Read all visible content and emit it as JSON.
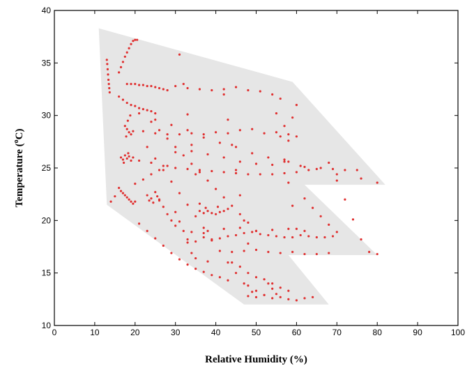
{
  "chart_data": {
    "type": "scatter",
    "title": "",
    "xlabel": "Relative Humidity (%)",
    "ylabel_main": "Temperature (",
    "ylabel_sup": "o",
    "ylabel_unit": "C)",
    "xlim": [
      0,
      100
    ],
    "ylim": [
      10,
      40
    ],
    "xticks": [
      0,
      10,
      20,
      30,
      40,
      50,
      60,
      70,
      80,
      90,
      100
    ],
    "yticks": [
      10,
      15,
      20,
      25,
      30,
      35,
      40
    ],
    "grid": false,
    "legend": "none",
    "colors": {
      "points": "#e03030",
      "region": "#e6e6e6",
      "axes": "#000000"
    },
    "region": [
      [
        11,
        38.3
      ],
      [
        59,
        33.2
      ],
      [
        82,
        23.4
      ],
      [
        70,
        23.4
      ],
      [
        62,
        23.4
      ],
      [
        80,
        16.7
      ],
      [
        58,
        16.7
      ],
      [
        68,
        12.0
      ],
      [
        47,
        12.0
      ],
      [
        13,
        21.5
      ],
      [
        11,
        38.3
      ]
    ],
    "series": [
      {
        "points": [
          [
            16,
            34.1
          ],
          [
            16.5,
            34.6
          ],
          [
            17,
            35.1
          ],
          [
            17.5,
            35.6
          ],
          [
            18,
            36.0
          ],
          [
            18.5,
            36.4
          ],
          [
            19,
            36.8
          ],
          [
            19.5,
            37.1
          ],
          [
            20,
            37.2
          ],
          [
            20.5,
            37.2
          ],
          [
            13.0,
            35.3
          ],
          [
            13.1,
            34.9
          ],
          [
            13.2,
            34.4
          ],
          [
            13.3,
            33.9
          ],
          [
            13.4,
            33.4
          ],
          [
            13.5,
            33.0
          ],
          [
            13.6,
            32.6
          ],
          [
            13.7,
            32.2
          ],
          [
            18,
            33.0
          ],
          [
            19,
            33.0
          ],
          [
            20,
            33.0
          ],
          [
            21,
            32.9
          ],
          [
            22,
            32.9
          ],
          [
            23,
            32.8
          ],
          [
            24,
            32.8
          ],
          [
            25,
            32.7
          ],
          [
            26,
            32.6
          ],
          [
            27,
            32.5
          ],
          [
            28,
            32.4
          ],
          [
            30,
            32.8
          ],
          [
            33,
            32.6
          ],
          [
            36,
            32.5
          ],
          [
            39,
            32.4
          ],
          [
            42,
            32.5
          ],
          [
            45,
            32.7
          ],
          [
            48,
            32.4
          ],
          [
            51,
            32.3
          ],
          [
            54,
            32.0
          ],
          [
            56,
            31.6
          ],
          [
            16,
            31.8
          ],
          [
            17,
            31.5
          ],
          [
            18,
            31.2
          ],
          [
            19,
            31.0
          ],
          [
            20,
            30.9
          ],
          [
            21,
            30.7
          ],
          [
            22,
            30.6
          ],
          [
            23,
            30.5
          ],
          [
            24,
            30.4
          ],
          [
            25,
            30.2
          ],
          [
            17.5,
            29.0
          ],
          [
            18,
            28.7
          ],
          [
            18.5,
            28.4
          ],
          [
            19,
            28.2
          ],
          [
            19.5,
            28.5
          ],
          [
            18.2,
            29.5
          ],
          [
            18.8,
            30.0
          ],
          [
            17.8,
            28.0
          ],
          [
            22,
            28.5
          ],
          [
            25,
            28.3
          ],
          [
            28,
            28.2
          ],
          [
            31,
            28.2
          ],
          [
            34,
            28.3
          ],
          [
            37,
            28.2
          ],
          [
            40,
            28.4
          ],
          [
            43,
            28.3
          ],
          [
            46,
            28.6
          ],
          [
            49,
            28.7
          ],
          [
            52,
            28.3
          ],
          [
            55,
            28.4
          ],
          [
            58,
            28.2
          ],
          [
            60,
            28.0
          ],
          [
            16.5,
            26.0
          ],
          [
            17,
            25.8
          ],
          [
            17.5,
            26.2
          ],
          [
            18,
            25.9
          ],
          [
            18.5,
            26.1
          ],
          [
            19,
            25.7
          ],
          [
            19.5,
            26.0
          ],
          [
            17.2,
            25.5
          ],
          [
            18.3,
            26.4
          ],
          [
            21,
            25.7
          ],
          [
            24,
            25.5
          ],
          [
            27,
            25.2
          ],
          [
            30,
            25.0
          ],
          [
            33,
            24.9
          ],
          [
            36,
            24.8
          ],
          [
            39,
            24.7
          ],
          [
            42,
            24.6
          ],
          [
            45,
            24.5
          ],
          [
            48,
            24.4
          ],
          [
            51,
            24.4
          ],
          [
            54,
            24.4
          ],
          [
            57,
            24.5
          ],
          [
            60,
            24.6
          ],
          [
            63,
            24.8
          ],
          [
            66,
            25.0
          ],
          [
            69,
            24.9
          ],
          [
            72,
            24.8
          ],
          [
            75,
            24.8
          ],
          [
            16.5,
            22.8
          ],
          [
            17,
            22.6
          ],
          [
            17.5,
            22.4
          ],
          [
            18,
            22.2
          ],
          [
            18.5,
            22.0
          ],
          [
            19,
            21.8
          ],
          [
            19.5,
            21.6
          ],
          [
            20,
            21.8
          ],
          [
            23,
            22.4
          ],
          [
            24,
            22.1
          ],
          [
            25,
            22.7
          ],
          [
            26,
            22.0
          ],
          [
            24.5,
            21.7
          ],
          [
            25.5,
            22.3
          ],
          [
            23.5,
            21.9
          ],
          [
            36,
            20.9
          ],
          [
            37,
            20.7
          ],
          [
            38,
            20.9
          ],
          [
            39,
            20.7
          ],
          [
            40,
            20.6
          ],
          [
            41,
            20.8
          ],
          [
            42,
            20.9
          ],
          [
            43,
            21.1
          ],
          [
            37.5,
            21.2
          ],
          [
            40.5,
            21.3
          ],
          [
            33,
            18.2
          ],
          [
            35,
            18.0
          ],
          [
            37,
            18.4
          ],
          [
            39,
            18.1
          ],
          [
            41,
            18.3
          ],
          [
            43,
            18.5
          ],
          [
            45,
            18.6
          ],
          [
            47,
            18.8
          ],
          [
            49,
            18.9
          ],
          [
            51,
            18.7
          ],
          [
            53,
            18.6
          ],
          [
            55,
            18.5
          ],
          [
            57,
            18.4
          ],
          [
            59,
            18.4
          ],
          [
            61,
            18.6
          ],
          [
            63,
            18.5
          ],
          [
            65,
            18.4
          ],
          [
            67,
            18.4
          ],
          [
            69,
            18.5
          ],
          [
            34,
            18.9
          ],
          [
            38,
            19.0
          ],
          [
            42,
            19.2
          ],
          [
            46,
            19.3
          ],
          [
            50,
            19.0
          ],
          [
            54,
            19.1
          ],
          [
            58,
            19.2
          ],
          [
            62,
            19.0
          ],
          [
            44,
            17.0
          ],
          [
            47,
            17.1
          ],
          [
            50,
            17.2
          ],
          [
            53,
            17.0
          ],
          [
            56,
            16.9
          ],
          [
            59,
            17.0
          ],
          [
            62,
            16.8
          ],
          [
            65,
            16.8
          ],
          [
            68,
            16.9
          ],
          [
            21,
            19.7
          ],
          [
            23,
            19.0
          ],
          [
            25,
            18.3
          ],
          [
            27,
            17.6
          ],
          [
            29,
            16.9
          ],
          [
            31,
            16.3
          ],
          [
            33,
            15.8
          ],
          [
            35,
            15.4
          ],
          [
            37,
            15.1
          ],
          [
            39,
            14.8
          ],
          [
            41,
            14.6
          ],
          [
            43,
            14.3
          ],
          [
            48,
            12.8
          ],
          [
            50,
            12.7
          ],
          [
            52,
            12.9
          ],
          [
            54,
            12.6
          ],
          [
            56,
            12.7
          ],
          [
            58,
            12.5
          ],
          [
            60,
            12.4
          ],
          [
            62,
            12.6
          ],
          [
            64,
            12.7
          ],
          [
            48,
            13.8
          ],
          [
            50,
            13.3
          ],
          [
            52,
            12.9
          ],
          [
            54,
            13.5
          ],
          [
            55,
            13.0
          ],
          [
            53,
            14.0
          ],
          [
            24,
            29.4
          ],
          [
            26,
            28.6
          ],
          [
            28,
            27.8
          ],
          [
            30,
            27.0
          ],
          [
            32,
            26.2
          ],
          [
            34,
            25.4
          ],
          [
            36,
            24.6
          ],
          [
            38,
            23.8
          ],
          [
            40,
            23.0
          ],
          [
            42,
            22.2
          ],
          [
            44,
            21.4
          ],
          [
            46,
            20.6
          ],
          [
            48,
            19.8
          ],
          [
            50,
            19.0
          ],
          [
            23,
            27.0
          ],
          [
            25,
            25.9
          ],
          [
            27,
            24.8
          ],
          [
            29,
            23.7
          ],
          [
            31,
            22.6
          ],
          [
            33,
            21.5
          ],
          [
            35,
            20.4
          ],
          [
            37,
            19.3
          ],
          [
            39,
            18.2
          ],
          [
            41,
            17.1
          ],
          [
            43,
            16.0
          ],
          [
            45,
            15.0
          ],
          [
            47,
            14.0
          ],
          [
            49,
            13.2
          ],
          [
            31,
            35.8
          ],
          [
            32,
            33.0
          ],
          [
            33,
            30.1
          ],
          [
            34,
            27.2
          ],
          [
            35,
            24.4
          ],
          [
            36,
            21.6
          ],
          [
            37,
            18.8
          ],
          [
            38,
            16.1
          ],
          [
            42,
            32.0
          ],
          [
            43,
            29.6
          ],
          [
            44,
            27.2
          ],
          [
            45,
            24.8
          ],
          [
            46,
            22.4
          ],
          [
            47,
            20.0
          ],
          [
            48,
            17.8
          ],
          [
            55,
            30.2
          ],
          [
            56,
            28.0
          ],
          [
            57,
            25.8
          ],
          [
            58,
            23.6
          ],
          [
            59,
            21.4
          ],
          [
            60,
            19.2
          ],
          [
            68,
            25.5
          ],
          [
            70,
            23.8
          ],
          [
            72,
            22.0
          ],
          [
            74,
            20.1
          ],
          [
            76,
            18.2
          ],
          [
            78,
            17.0
          ],
          [
            80,
            16.8
          ],
          [
            21,
            30.2
          ],
          [
            25,
            29.6
          ],
          [
            29,
            29.1
          ],
          [
            33,
            28.6
          ],
          [
            37,
            27.9
          ],
          [
            41,
            27.4
          ],
          [
            45,
            27.0
          ],
          [
            49,
            26.4
          ],
          [
            53,
            26.0
          ],
          [
            57,
            25.6
          ],
          [
            61,
            25.2
          ],
          [
            65,
            24.9
          ],
          [
            70,
            24.4
          ],
          [
            76,
            24.0
          ],
          [
            80,
            23.6
          ],
          [
            30,
            26.5
          ],
          [
            34,
            26.6
          ],
          [
            38,
            26.3
          ],
          [
            42,
            26.0
          ],
          [
            46,
            25.6
          ],
          [
            50,
            25.4
          ],
          [
            54,
            25.3
          ],
          [
            58,
            25.6
          ],
          [
            62,
            25.1
          ],
          [
            20,
            23.5
          ],
          [
            22,
            23.9
          ],
          [
            24,
            24.4
          ],
          [
            26,
            24.8
          ],
          [
            28,
            25.2
          ],
          [
            14,
            21.8
          ],
          [
            15,
            22.3
          ],
          [
            16,
            23.1
          ],
          [
            30,
            20.8
          ],
          [
            31,
            19.9
          ],
          [
            32,
            19.0
          ],
          [
            33,
            17.9
          ],
          [
            34,
            16.9
          ],
          [
            35,
            16.4
          ],
          [
            57,
            29.0
          ],
          [
            59,
            29.8
          ],
          [
            60,
            31.0
          ],
          [
            58,
            27.6
          ],
          [
            44,
            16.0
          ],
          [
            46,
            15.6
          ],
          [
            48,
            15.0
          ],
          [
            50,
            14.6
          ],
          [
            52,
            14.4
          ],
          [
            54,
            14.0
          ],
          [
            56,
            13.6
          ],
          [
            58,
            13.3
          ],
          [
            62,
            22.1
          ],
          [
            64,
            21.2
          ],
          [
            66,
            20.4
          ],
          [
            68,
            19.6
          ],
          [
            70,
            18.9
          ],
          [
            26,
            21.9
          ],
          [
            27,
            21.3
          ],
          [
            28,
            20.6
          ],
          [
            29,
            20.0
          ],
          [
            30,
            19.5
          ]
        ]
      }
    ]
  }
}
